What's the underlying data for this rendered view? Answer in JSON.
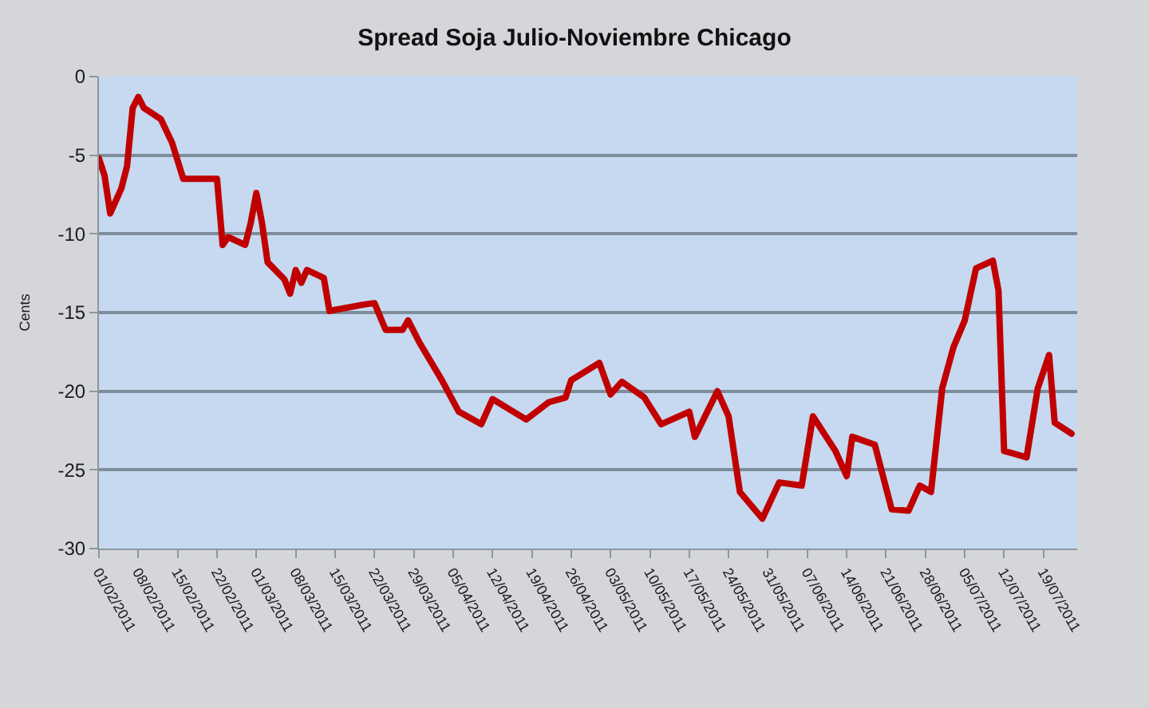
{
  "chart_data": {
    "type": "line",
    "title": "Spread Soja Julio-Noviembre Chicago",
    "ylabel": "Cents",
    "x": [
      "2011-02-01",
      "2011-02-02",
      "2011-02-03",
      "2011-02-05",
      "2011-02-06",
      "2011-02-07",
      "2011-02-08",
      "2011-02-09",
      "2011-02-12",
      "2011-02-14",
      "2011-02-16",
      "2011-02-22",
      "2011-02-23",
      "2011-02-24",
      "2011-02-27",
      "2011-02-28",
      "2011-03-01",
      "2011-03-02",
      "2011-03-03",
      "2011-03-06",
      "2011-03-07",
      "2011-03-08",
      "2011-03-09",
      "2011-03-10",
      "2011-03-13",
      "2011-03-14",
      "2011-03-20",
      "2011-03-22",
      "2011-03-24",
      "2011-03-27",
      "2011-03-28",
      "2011-03-30",
      "2011-04-03",
      "2011-04-06",
      "2011-04-10",
      "2011-04-12",
      "2011-04-18",
      "2011-04-22",
      "2011-04-25",
      "2011-04-26",
      "2011-05-01",
      "2011-05-03",
      "2011-05-05",
      "2011-05-09",
      "2011-05-12",
      "2011-05-17",
      "2011-05-18",
      "2011-05-22",
      "2011-05-24",
      "2011-05-26",
      "2011-05-30",
      "2011-06-02",
      "2011-06-06",
      "2011-06-08",
      "2011-06-12",
      "2011-06-14",
      "2011-06-15",
      "2011-06-19",
      "2011-06-22",
      "2011-06-25",
      "2011-06-27",
      "2011-06-29",
      "2011-07-01",
      "2011-07-03",
      "2011-07-05",
      "2011-07-07",
      "2011-07-10",
      "2011-07-11",
      "2011-07-12",
      "2011-07-16",
      "2011-07-18",
      "2011-07-20",
      "2011-07-21",
      "2011-07-24"
    ],
    "series": [
      {
        "color": "#c00000",
        "values": [
          -5.2,
          -6.3,
          -8.7,
          -7.1,
          -5.7,
          -2.0,
          -1.3,
          -2.0,
          -2.7,
          -4.2,
          -6.5,
          -6.5,
          -10.7,
          -10.2,
          -10.7,
          -9.3,
          -7.4,
          -9.3,
          -11.8,
          -12.9,
          -13.8,
          -12.3,
          -13.1,
          -12.3,
          -12.8,
          -14.9,
          -14.5,
          -14.4,
          -16.1,
          -16.1,
          -15.5,
          -16.9,
          -19.3,
          -21.3,
          -22.1,
          -20.5,
          -21.8,
          -20.7,
          -20.4,
          -19.3,
          -18.2,
          -20.2,
          -19.4,
          -20.4,
          -22.1,
          -21.3,
          -22.9,
          -20.0,
          -21.6,
          -26.4,
          -28.1,
          -25.8,
          -26.0,
          -21.6,
          -23.8,
          -25.4,
          -22.9,
          -23.4,
          -27.5,
          -27.6,
          -26.0,
          -26.4,
          -19.8,
          -17.2,
          -15.5,
          -12.2,
          -11.7,
          -13.6,
          -23.8,
          -24.2,
          -19.8,
          -17.7,
          -22.0,
          -22.7
        ]
      }
    ],
    "xlim": [
      "2011-02-01",
      "2011-07-25"
    ],
    "xticks": [
      {
        "value": "2011-02-01",
        "label": "01/02/2011"
      },
      {
        "value": "2011-02-08",
        "label": "08/02/2011"
      },
      {
        "value": "2011-02-15",
        "label": "15/02/2011"
      },
      {
        "value": "2011-02-22",
        "label": "22/02/2011"
      },
      {
        "value": "2011-03-01",
        "label": "01/03/2011"
      },
      {
        "value": "2011-03-08",
        "label": "08/03/2011"
      },
      {
        "value": "2011-03-15",
        "label": "15/03/2011"
      },
      {
        "value": "2011-03-22",
        "label": "22/03/2011"
      },
      {
        "value": "2011-03-29",
        "label": "29/03/2011"
      },
      {
        "value": "2011-04-05",
        "label": "05/04/2011"
      },
      {
        "value": "2011-04-12",
        "label": "12/04/2011"
      },
      {
        "value": "2011-04-19",
        "label": "19/04/2011"
      },
      {
        "value": "2011-04-26",
        "label": "26/04/2011"
      },
      {
        "value": "2011-05-03",
        "label": "03/05/2011"
      },
      {
        "value": "2011-05-10",
        "label": "10/05/2011"
      },
      {
        "value": "2011-05-17",
        "label": "17/05/2011"
      },
      {
        "value": "2011-05-24",
        "label": "24/05/2011"
      },
      {
        "value": "2011-05-31",
        "label": "31/05/2011"
      },
      {
        "value": "2011-06-07",
        "label": "07/06/2011"
      },
      {
        "value": "2011-06-14",
        "label": "14/06/2011"
      },
      {
        "value": "2011-06-21",
        "label": "21/06/2011"
      },
      {
        "value": "2011-06-28",
        "label": "28/06/2011"
      },
      {
        "value": "2011-07-05",
        "label": "05/07/2011"
      },
      {
        "value": "2011-07-12",
        "label": "12/07/2011"
      },
      {
        "value": "2011-07-19",
        "label": "19/07/2011"
      }
    ],
    "ylim": [
      -30,
      0
    ],
    "yticks": [
      -30,
      -25,
      -20,
      -15,
      -10,
      -5,
      0
    ],
    "grid": "y",
    "marker": "none",
    "line_style": "solid"
  }
}
